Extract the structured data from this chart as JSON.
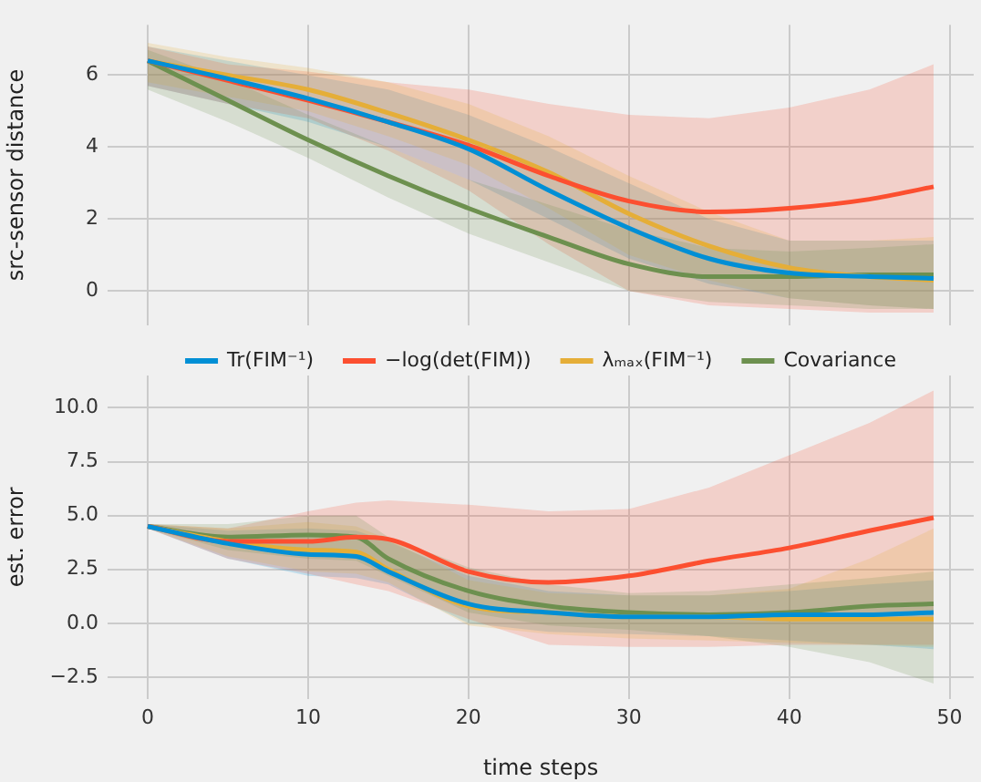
{
  "chart_data": [
    {
      "type": "line",
      "ylabel": "src-sensor distance",
      "x": [
        0,
        5,
        10,
        15,
        20,
        25,
        30,
        35,
        40,
        45,
        49
      ],
      "xlim": [
        -2.5,
        51.5
      ],
      "xticks": [
        0,
        10,
        20,
        30,
        40,
        50
      ],
      "ylim": [
        -0.95,
        7.4
      ],
      "yticks": [
        0,
        2,
        4,
        6
      ],
      "grid": true,
      "legend": false,
      "marker": "none",
      "line_style": "solid",
      "tick_labels": "y",
      "series": [
        {
          "color": "#008fd5",
          "values": [
            6.4,
            5.9,
            5.35,
            4.7,
            3.95,
            2.8,
            1.75,
            0.9,
            0.5,
            0.4,
            0.35
          ],
          "lower": [
            5.7,
            5.2,
            4.7,
            4.0,
            3.1,
            2.0,
            0.9,
            0.2,
            -0.2,
            -0.4,
            -0.5
          ],
          "upper": [
            6.8,
            6.4,
            6.0,
            5.6,
            4.9,
            4.0,
            3.0,
            2.0,
            1.4,
            1.4,
            1.4
          ]
        },
        {
          "color": "#fc4f30",
          "values": [
            6.4,
            5.85,
            5.3,
            4.7,
            4.05,
            3.2,
            2.5,
            2.2,
            2.3,
            2.55,
            2.9
          ],
          "lower": [
            5.7,
            5.2,
            4.8,
            3.9,
            2.8,
            1.3,
            0.0,
            -0.4,
            -0.5,
            -0.6,
            -0.6
          ],
          "upper": [
            6.8,
            6.3,
            6.1,
            5.8,
            5.6,
            5.2,
            4.9,
            4.8,
            5.1,
            5.6,
            6.3
          ]
        },
        {
          "color": "#e5ae38",
          "values": [
            6.4,
            6.0,
            5.6,
            4.95,
            4.2,
            3.3,
            2.15,
            1.25,
            0.65,
            0.4,
            0.3
          ],
          "lower": [
            5.8,
            5.4,
            5.0,
            4.3,
            3.5,
            2.3,
            1.0,
            0.3,
            -0.2,
            -0.4,
            -0.5
          ],
          "upper": [
            6.9,
            6.5,
            6.2,
            5.8,
            5.2,
            4.3,
            3.2,
            2.2,
            1.4,
            1.4,
            1.5
          ]
        },
        {
          "color": "#6d904f",
          "values": [
            6.4,
            5.3,
            4.2,
            3.2,
            2.3,
            1.5,
            0.75,
            0.4,
            0.4,
            0.45,
            0.45
          ],
          "lower": [
            5.6,
            4.7,
            3.7,
            2.6,
            1.6,
            0.8,
            0.0,
            -0.3,
            -0.4,
            -0.5,
            -0.5
          ],
          "upper": [
            6.7,
            5.9,
            4.9,
            4.0,
            3.1,
            2.4,
            1.7,
            1.2,
            1.1,
            1.2,
            1.3
          ]
        }
      ]
    },
    {
      "type": "line",
      "xlabel": "time steps",
      "ylabel": "est. error",
      "x": [
        0,
        5,
        10,
        13,
        15,
        20,
        25,
        30,
        35,
        40,
        45,
        49
      ],
      "xlim": [
        -2.5,
        51.5
      ],
      "xticks": [
        0,
        10,
        20,
        30,
        40,
        50
      ],
      "ylim": [
        -3.5,
        11.5
      ],
      "yticks": [
        {
          "value": -2.5,
          "label": "−2.5"
        },
        {
          "value": 0,
          "label": "0.0"
        },
        {
          "value": 2.5,
          "label": "2.5"
        },
        {
          "value": 5,
          "label": "5.0"
        },
        {
          "value": 7.5,
          "label": "7.5"
        },
        {
          "value": 10,
          "label": "10.0"
        }
      ],
      "grid": true,
      "legend": "top",
      "marker": "none",
      "line_style": "solid",
      "series": [
        {
          "name": "Tr(FIM⁻¹)",
          "color": "#008fd5",
          "values": [
            4.5,
            3.7,
            3.2,
            3.1,
            2.4,
            0.9,
            0.5,
            0.3,
            0.3,
            0.4,
            0.4,
            0.5
          ],
          "lower": [
            4.4,
            3.0,
            2.2,
            2.1,
            1.8,
            0.0,
            -0.4,
            -0.5,
            -0.6,
            -0.8,
            -1.0,
            -1.2
          ],
          "upper": [
            4.6,
            4.3,
            4.4,
            4.3,
            3.8,
            2.2,
            1.5,
            1.3,
            1.3,
            1.5,
            1.8,
            2.0
          ]
        },
        {
          "name": "−log(det(FIM))",
          "color": "#fc4f30",
          "values": [
            4.5,
            3.8,
            3.8,
            4.0,
            3.9,
            2.4,
            1.9,
            2.2,
            2.9,
            3.5,
            4.3,
            4.9
          ],
          "lower": [
            4.4,
            3.0,
            2.3,
            1.8,
            1.5,
            0.2,
            -1.0,
            -1.1,
            -1.1,
            -1.0,
            -1.0,
            -1.0
          ],
          "upper": [
            4.6,
            4.4,
            5.2,
            5.6,
            5.7,
            5.5,
            5.2,
            5.3,
            6.3,
            7.8,
            9.3,
            10.8
          ]
        },
        {
          "name": "λₘₐₓ(FIM⁻¹)",
          "color": "#e5ae38",
          "values": [
            4.5,
            3.8,
            3.4,
            3.3,
            2.5,
            0.8,
            0.5,
            0.3,
            0.3,
            0.2,
            0.2,
            0.2
          ],
          "lower": [
            4.4,
            3.1,
            2.4,
            2.3,
            1.9,
            -0.1,
            -0.5,
            -0.7,
            -0.8,
            -0.9,
            -1.0,
            -1.1
          ],
          "upper": [
            4.6,
            4.4,
            4.7,
            4.5,
            3.9,
            2.0,
            1.4,
            1.3,
            1.3,
            1.6,
            3.0,
            4.4
          ]
        },
        {
          "name": "Covariance",
          "color": "#6d904f",
          "values": [
            4.5,
            4.0,
            4.1,
            4.0,
            3.0,
            1.5,
            0.8,
            0.5,
            0.4,
            0.5,
            0.8,
            0.9
          ],
          "lower": [
            4.4,
            3.4,
            3.0,
            2.9,
            2.2,
            0.5,
            -0.1,
            -0.3,
            -0.6,
            -1.1,
            -1.8,
            -2.8
          ],
          "upper": [
            4.6,
            4.6,
            5.0,
            5.0,
            4.0,
            2.6,
            1.8,
            1.4,
            1.5,
            1.8,
            2.1,
            2.4
          ]
        }
      ]
    }
  ]
}
